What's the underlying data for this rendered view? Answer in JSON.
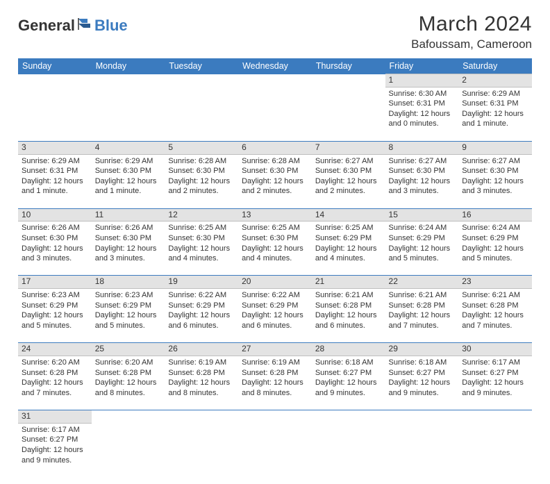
{
  "logo": {
    "text1": "General",
    "text2": "Blue"
  },
  "title": "March 2024",
  "location": "Bafoussam, Cameroon",
  "colors": {
    "header_bg": "#3b7bbf",
    "header_text": "#ffffff",
    "daynum_bg": "#e3e3e3",
    "rule": "#3b7bbf",
    "text": "#333333",
    "logo_blue": "#3b7bbf"
  },
  "weekdays": [
    "Sunday",
    "Monday",
    "Tuesday",
    "Wednesday",
    "Thursday",
    "Friday",
    "Saturday"
  ],
  "weeks": [
    [
      null,
      null,
      null,
      null,
      null,
      {
        "n": "1",
        "sr": "Sunrise: 6:30 AM",
        "ss": "Sunset: 6:31 PM",
        "dl": "Daylight: 12 hours and 0 minutes."
      },
      {
        "n": "2",
        "sr": "Sunrise: 6:29 AM",
        "ss": "Sunset: 6:31 PM",
        "dl": "Daylight: 12 hours and 1 minute."
      }
    ],
    [
      {
        "n": "3",
        "sr": "Sunrise: 6:29 AM",
        "ss": "Sunset: 6:31 PM",
        "dl": "Daylight: 12 hours and 1 minute."
      },
      {
        "n": "4",
        "sr": "Sunrise: 6:29 AM",
        "ss": "Sunset: 6:30 PM",
        "dl": "Daylight: 12 hours and 1 minute."
      },
      {
        "n": "5",
        "sr": "Sunrise: 6:28 AM",
        "ss": "Sunset: 6:30 PM",
        "dl": "Daylight: 12 hours and 2 minutes."
      },
      {
        "n": "6",
        "sr": "Sunrise: 6:28 AM",
        "ss": "Sunset: 6:30 PM",
        "dl": "Daylight: 12 hours and 2 minutes."
      },
      {
        "n": "7",
        "sr": "Sunrise: 6:27 AM",
        "ss": "Sunset: 6:30 PM",
        "dl": "Daylight: 12 hours and 2 minutes."
      },
      {
        "n": "8",
        "sr": "Sunrise: 6:27 AM",
        "ss": "Sunset: 6:30 PM",
        "dl": "Daylight: 12 hours and 3 minutes."
      },
      {
        "n": "9",
        "sr": "Sunrise: 6:27 AM",
        "ss": "Sunset: 6:30 PM",
        "dl": "Daylight: 12 hours and 3 minutes."
      }
    ],
    [
      {
        "n": "10",
        "sr": "Sunrise: 6:26 AM",
        "ss": "Sunset: 6:30 PM",
        "dl": "Daylight: 12 hours and 3 minutes."
      },
      {
        "n": "11",
        "sr": "Sunrise: 6:26 AM",
        "ss": "Sunset: 6:30 PM",
        "dl": "Daylight: 12 hours and 3 minutes."
      },
      {
        "n": "12",
        "sr": "Sunrise: 6:25 AM",
        "ss": "Sunset: 6:30 PM",
        "dl": "Daylight: 12 hours and 4 minutes."
      },
      {
        "n": "13",
        "sr": "Sunrise: 6:25 AM",
        "ss": "Sunset: 6:30 PM",
        "dl": "Daylight: 12 hours and 4 minutes."
      },
      {
        "n": "14",
        "sr": "Sunrise: 6:25 AM",
        "ss": "Sunset: 6:29 PM",
        "dl": "Daylight: 12 hours and 4 minutes."
      },
      {
        "n": "15",
        "sr": "Sunrise: 6:24 AM",
        "ss": "Sunset: 6:29 PM",
        "dl": "Daylight: 12 hours and 5 minutes."
      },
      {
        "n": "16",
        "sr": "Sunrise: 6:24 AM",
        "ss": "Sunset: 6:29 PM",
        "dl": "Daylight: 12 hours and 5 minutes."
      }
    ],
    [
      {
        "n": "17",
        "sr": "Sunrise: 6:23 AM",
        "ss": "Sunset: 6:29 PM",
        "dl": "Daylight: 12 hours and 5 minutes."
      },
      {
        "n": "18",
        "sr": "Sunrise: 6:23 AM",
        "ss": "Sunset: 6:29 PM",
        "dl": "Daylight: 12 hours and 5 minutes."
      },
      {
        "n": "19",
        "sr": "Sunrise: 6:22 AM",
        "ss": "Sunset: 6:29 PM",
        "dl": "Daylight: 12 hours and 6 minutes."
      },
      {
        "n": "20",
        "sr": "Sunrise: 6:22 AM",
        "ss": "Sunset: 6:29 PM",
        "dl": "Daylight: 12 hours and 6 minutes."
      },
      {
        "n": "21",
        "sr": "Sunrise: 6:21 AM",
        "ss": "Sunset: 6:28 PM",
        "dl": "Daylight: 12 hours and 6 minutes."
      },
      {
        "n": "22",
        "sr": "Sunrise: 6:21 AM",
        "ss": "Sunset: 6:28 PM",
        "dl": "Daylight: 12 hours and 7 minutes."
      },
      {
        "n": "23",
        "sr": "Sunrise: 6:21 AM",
        "ss": "Sunset: 6:28 PM",
        "dl": "Daylight: 12 hours and 7 minutes."
      }
    ],
    [
      {
        "n": "24",
        "sr": "Sunrise: 6:20 AM",
        "ss": "Sunset: 6:28 PM",
        "dl": "Daylight: 12 hours and 7 minutes."
      },
      {
        "n": "25",
        "sr": "Sunrise: 6:20 AM",
        "ss": "Sunset: 6:28 PM",
        "dl": "Daylight: 12 hours and 8 minutes."
      },
      {
        "n": "26",
        "sr": "Sunrise: 6:19 AM",
        "ss": "Sunset: 6:28 PM",
        "dl": "Daylight: 12 hours and 8 minutes."
      },
      {
        "n": "27",
        "sr": "Sunrise: 6:19 AM",
        "ss": "Sunset: 6:28 PM",
        "dl": "Daylight: 12 hours and 8 minutes."
      },
      {
        "n": "28",
        "sr": "Sunrise: 6:18 AM",
        "ss": "Sunset: 6:27 PM",
        "dl": "Daylight: 12 hours and 9 minutes."
      },
      {
        "n": "29",
        "sr": "Sunrise: 6:18 AM",
        "ss": "Sunset: 6:27 PM",
        "dl": "Daylight: 12 hours and 9 minutes."
      },
      {
        "n": "30",
        "sr": "Sunrise: 6:17 AM",
        "ss": "Sunset: 6:27 PM",
        "dl": "Daylight: 12 hours and 9 minutes."
      }
    ],
    [
      {
        "n": "31",
        "sr": "Sunrise: 6:17 AM",
        "ss": "Sunset: 6:27 PM",
        "dl": "Daylight: 12 hours and 9 minutes."
      },
      null,
      null,
      null,
      null,
      null,
      null
    ]
  ]
}
